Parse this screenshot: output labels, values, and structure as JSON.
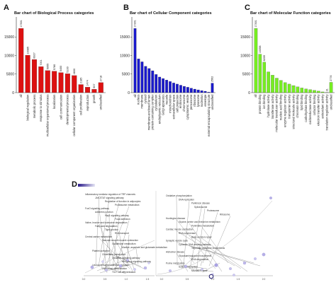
{
  "panels": [
    {
      "letter": "A",
      "title": "Bar chart of Biological Process categories"
    },
    {
      "letter": "B",
      "title": "Bar chart of Cellular Component categories"
    },
    {
      "letter": "C",
      "title": "Bar chart of Molecular Function categories"
    },
    {
      "letter": "D"
    }
  ],
  "chart_data": [
    {
      "type": "bar",
      "title": "Bar chart of Biological Process categories",
      "color": "#dd1111",
      "ylim": [
        0,
        20000
      ],
      "yticks": [
        0,
        5000,
        10000,
        15000
      ],
      "categories": [
        "all",
        "biological regulation",
        "metabolic process",
        "response to stimulus",
        "multicellular organismal process",
        "localization",
        "cell communication",
        "developmental process",
        "cellular component organization",
        "cell proliferation",
        "reproduction",
        "growth",
        "unclassified"
      ],
      "values": [
        17301,
        10085,
        8927,
        7001,
        5955,
        5780,
        5400,
        5100,
        4600,
        2185,
        1474,
        907,
        2718
      ],
      "labels": [
        "17301",
        "10085",
        "8927",
        "7001",
        "5955",
        "5780",
        "5400",
        "5100",
        "4600",
        "2185",
        "1474",
        "907",
        "2718"
      ]
    },
    {
      "type": "bar",
      "title": "Bar chart of Cellular Component categories",
      "color": "#1a1acc",
      "ylim": [
        0,
        20000
      ],
      "yticks": [
        0,
        5000,
        10000,
        15000
      ],
      "categories": [
        "all",
        "nucleus",
        "membrane",
        "cytosol",
        "membrane-enclosed lumen",
        "protein-containing complex",
        "cytoskeleton",
        "endoplasmic reticulum",
        "Golgi apparatus",
        "vacuole",
        "mitochondrion",
        "extracellular space",
        "cell projection",
        "endosome",
        "chromosome",
        "cytoplasmic vesicle",
        "peroxisome",
        "ribosome",
        "lysosome",
        "nucleolus",
        "envelope",
        "external encapsulating structure",
        "unclassified"
      ],
      "values": [
        17301,
        9100,
        8300,
        7100,
        6500,
        5900,
        4900,
        4200,
        3800,
        3400,
        3000,
        2600,
        2300,
        2000,
        1700,
        1450,
        1200,
        950,
        750,
        550,
        380,
        150,
        2562
      ],
      "labels": [
        "17301",
        "",
        "",
        "",
        "",
        "",
        "",
        "",
        "",
        "",
        "",
        "",
        "",
        "",
        "",
        "",
        "",
        "",
        "",
        "",
        "",
        "",
        "2562"
      ]
    },
    {
      "type": "bar",
      "title": "Bar chart of Molecular Function categories",
      "color": "#77ee22",
      "ylim": [
        0,
        20000
      ],
      "yticks": [
        0,
        5000,
        10000,
        15000
      ],
      "categories": [
        "all",
        "protein binding",
        "ion binding",
        "hydrolase activity",
        "transferase activity",
        "molecular transducer activity",
        "nucleic acid binding",
        "enzyme regulator activity",
        "transporter activity",
        "structural molecule activity",
        "chromatin binding",
        "lipid binding",
        "carbohydrate binding",
        "oxidoreductase activity",
        "cofactor binding",
        "electron transfer activity",
        "antioxidant activity",
        "translation regulator activity",
        "unclassified"
      ],
      "values": [
        17301,
        10358,
        8209,
        5600,
        4700,
        3900,
        3300,
        2700,
        2300,
        1900,
        1550,
        1250,
        1000,
        800,
        600,
        400,
        200,
        31,
        2776
      ],
      "labels": [
        "17301",
        "10358",
        "8209",
        "",
        "",
        "",
        "",
        "",
        "",
        "",
        "",
        "",
        "",
        "",
        "",
        "",
        "",
        "31",
        "2776"
      ]
    }
  ],
  "network": {
    "left_labels": [
      "Inflammatory mediator regulation of TRP channels",
      "JAK-STAT signaling pathway",
      "Regulation of function in adipocytes",
      "Proteasome metabolism",
      "FoxO signaling pathway",
      "Adherens junction",
      "Rap1 signaling pathway",
      "Focal adhesion",
      "Valine, leucine and isoleucine degradation",
      "Fatty acid degradation",
      "Tight junction",
      "RNA transport",
      "Central carbon metabolism",
      "Vascular smooth muscle contraction",
      "Glutathione metabolism",
      "Alanine, aspartate and glutamate metabolism",
      "Platelet activation",
      "Cholesterol metabolism",
      "Oxidative signaling pathway",
      "Hedgehog signaling pathway",
      "Leukocyte transendothelial migration",
      "Osteoclast differentiation",
      "Th17 cell differentiation"
    ],
    "right_labels": [
      "Oxidative phosphorylation",
      "DNA replication",
      "Parkinson disease",
      "Spliceosome",
      "Proteasome",
      "Ribosome",
      "Huntington disease",
      "Glycine, serine and threonine metabolism",
      "Pyrimidine metabolism",
      "Cardiac muscle contraction",
      "RNA polymerase",
      "Base excision repair",
      "Synaptic vesicle cycle",
      "Cytosolic DNA-sensing pathway",
      "Terpenoid backbone biosynthesis",
      "Alzheimer disease",
      "Glycosaminoglycan biosynthesis",
      "RNA degradation",
      "Purine metabolism",
      "Sulfur relay system",
      "Mismatch repair"
    ],
    "axis_left": [
      "0.0",
      "0.5",
      "1.0",
      "1.5"
    ],
    "axis_right": [
      "0.0",
      "0.5",
      "1.0",
      "1.5",
      "2.0"
    ]
  }
}
